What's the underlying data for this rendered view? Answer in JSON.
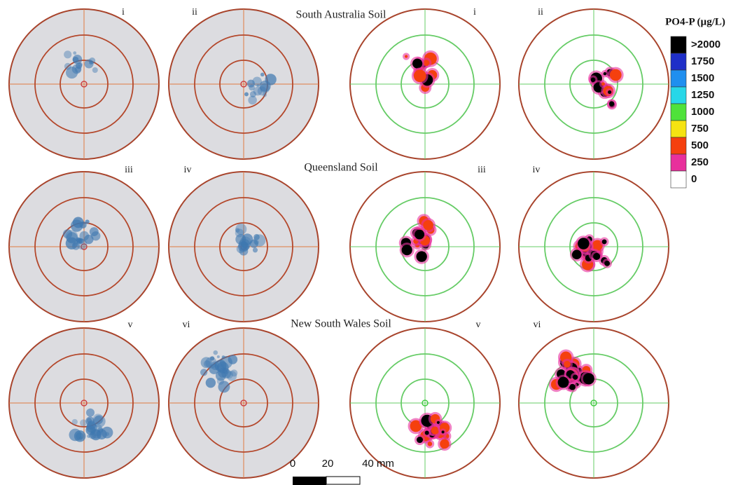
{
  "sections": [
    {
      "title": "South Australia Soil",
      "panels": [
        "i",
        "ii",
        "i",
        "ii"
      ]
    },
    {
      "title": "Queensland Soil",
      "panels": [
        "iii",
        "iv",
        "iii",
        "iv"
      ]
    },
    {
      "title": "New South Wales Soil",
      "panels": [
        "v",
        "vi",
        "v",
        "vi"
      ]
    }
  ],
  "legend": {
    "title": "PO4-P (µg/L)",
    "entries": [
      {
        "label": ">2000",
        "color": "#000000"
      },
      {
        "label": 1750,
        "color": "#1f2fc8"
      },
      {
        "label": 1500,
        "color": "#1f8fef"
      },
      {
        "label": 1250,
        "color": "#27d7e8"
      },
      {
        "label": 1000,
        "color": "#4fe23a"
      },
      {
        "label": 750,
        "color": "#f5e312"
      },
      {
        "label": 500,
        "color": "#f5400e"
      },
      {
        "label": 250,
        "color": "#e8309c"
      },
      {
        "label": 0,
        "color": "#ffffff"
      }
    ]
  },
  "scale_bar": {
    "labels": [
      0,
      20,
      "40 mm"
    ]
  }
}
